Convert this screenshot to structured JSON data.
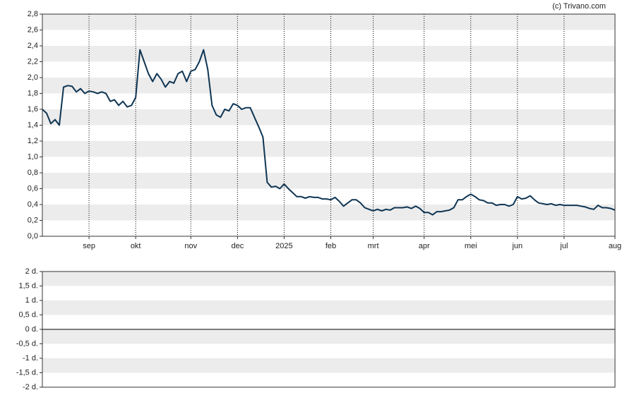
{
  "credit": "(c) Trivano.com",
  "chart_data": [
    {
      "type": "line",
      "categories": [
        null,
        null,
        null,
        null,
        null,
        null,
        null,
        null,
        null,
        null,
        null,
        "sep",
        null,
        null,
        null,
        null,
        null,
        null,
        null,
        null,
        null,
        null,
        "okt",
        null,
        null,
        null,
        null,
        null,
        null,
        null,
        null,
        null,
        null,
        null,
        null,
        "nov",
        null,
        null,
        null,
        null,
        null,
        null,
        null,
        null,
        null,
        null,
        "dec",
        null,
        null,
        null,
        null,
        null,
        null,
        null,
        null,
        null,
        null,
        "2025",
        null,
        null,
        null,
        null,
        null,
        null,
        null,
        null,
        null,
        null,
        "feb",
        null,
        null,
        null,
        null,
        null,
        null,
        null,
        null,
        null,
        "mrt",
        null,
        null,
        null,
        null,
        null,
        null,
        null,
        null,
        null,
        null,
        null,
        "apr",
        null,
        null,
        null,
        null,
        null,
        null,
        null,
        null,
        null,
        null,
        "mei",
        null,
        null,
        null,
        null,
        null,
        null,
        null,
        null,
        null,
        null,
        "jun",
        null,
        null,
        null,
        null,
        null,
        null,
        null,
        null,
        null,
        null,
        "jul",
        null,
        null,
        null,
        null,
        null,
        null,
        null,
        null,
        null,
        null,
        null,
        "aug"
      ],
      "series": [
        {
          "color": "#0f3553",
          "values": [
            1.6,
            1.55,
            1.42,
            1.47,
            1.4,
            1.88,
            1.9,
            1.89,
            1.82,
            1.86,
            1.8,
            1.83,
            1.82,
            1.8,
            1.82,
            1.8,
            1.7,
            1.72,
            1.65,
            1.7,
            1.63,
            1.65,
            1.75,
            2.35,
            2.2,
            2.05,
            1.95,
            2.05,
            1.98,
            1.88,
            1.95,
            1.93,
            2.05,
            2.08,
            1.95,
            2.08,
            2.1,
            2.2,
            2.35,
            2.1,
            1.65,
            1.53,
            1.5,
            1.6,
            1.58,
            1.67,
            1.65,
            1.6,
            1.62,
            1.62,
            1.5,
            1.38,
            1.25,
            0.68,
            0.62,
            0.63,
            0.6,
            0.66,
            0.6,
            0.55,
            0.5,
            0.5,
            0.48,
            0.5,
            0.49,
            0.49,
            0.47,
            0.47,
            0.46,
            0.49,
            0.44,
            0.38,
            0.42,
            0.46,
            0.46,
            0.42,
            0.36,
            0.34,
            0.32,
            0.34,
            0.32,
            0.34,
            0.33,
            0.36,
            0.36,
            0.36,
            0.37,
            0.35,
            0.38,
            0.35,
            0.3,
            0.3,
            0.27,
            0.31,
            0.31,
            0.32,
            0.33,
            0.36,
            0.46,
            0.46,
            0.5,
            0.53,
            0.5,
            0.46,
            0.45,
            0.42,
            0.42,
            0.39,
            0.4,
            0.4,
            0.38,
            0.4,
            0.5,
            0.47,
            0.48,
            0.51,
            0.46,
            0.42,
            0.41,
            0.4,
            0.41,
            0.39,
            0.4,
            0.39,
            0.39,
            0.39,
            0.39,
            0.38,
            0.37,
            0.35,
            0.34,
            0.39,
            0.36,
            0.36,
            0.35,
            0.33
          ]
        }
      ],
      "ylim": [
        0,
        2.8
      ],
      "yticks": [
        {
          "value": 0,
          "label": "0,0"
        },
        {
          "value": 0.2,
          "label": "0,2"
        },
        {
          "value": 0.4,
          "label": "0,4"
        },
        {
          "value": 0.6,
          "label": "0,6"
        },
        {
          "value": 0.8,
          "label": "0,8"
        },
        {
          "value": 1,
          "label": "1,0"
        },
        {
          "value": 1.2,
          "label": "1,2"
        },
        {
          "value": 1.4,
          "label": "1,4"
        },
        {
          "value": 1.6,
          "label": "1,6"
        },
        {
          "value": 1.8,
          "label": "1,8"
        },
        {
          "value": 2,
          "label": "2,0"
        },
        {
          "value": 2.2,
          "label": "2,2"
        },
        {
          "value": 2.4,
          "label": "2,4"
        },
        {
          "value": 2.6,
          "label": "2,6"
        },
        {
          "value": 2.8,
          "label": "2,8"
        }
      ],
      "grid": true
    },
    {
      "type": "bar",
      "ylim": [
        -2,
        2
      ],
      "yticks": [
        {
          "value": 2,
          "label": "2 d."
        },
        {
          "value": 1.5,
          "label": "1,5 d."
        },
        {
          "value": 1,
          "label": "1 d."
        },
        {
          "value": 0.5,
          "label": "0,5 d."
        },
        {
          "value": 0,
          "label": "0 d."
        },
        {
          "value": -0.5,
          "label": "-0,5 d."
        },
        {
          "value": -1,
          "label": "-1 d."
        },
        {
          "value": -1.5,
          "label": "-1,5 d."
        },
        {
          "value": -2,
          "label": "-2 d."
        }
      ],
      "grid": true
    }
  ]
}
